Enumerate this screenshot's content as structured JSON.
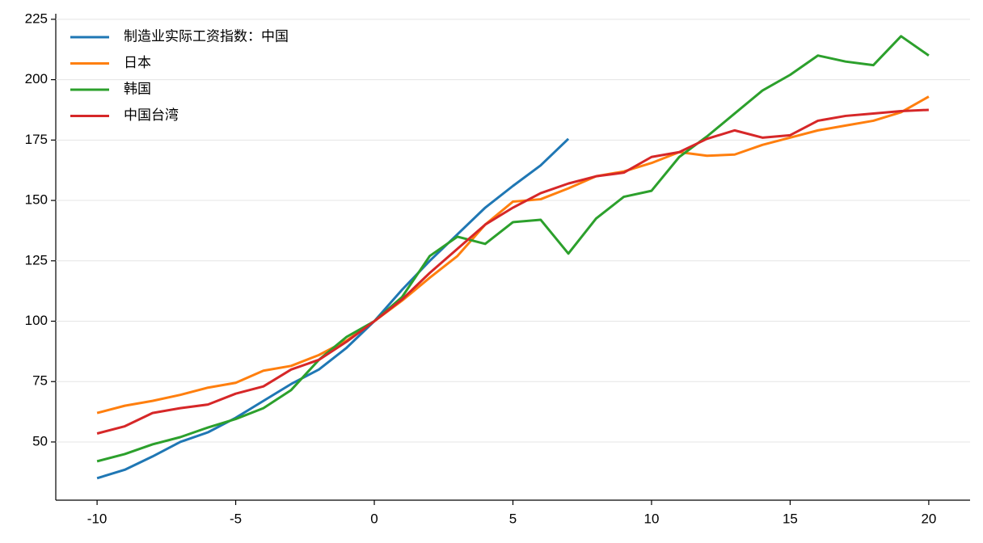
{
  "chart_data": {
    "type": "line",
    "x": [
      -10,
      -9,
      -8,
      -7,
      -6,
      -5,
      -4,
      -3,
      -2,
      -1,
      0,
      1,
      2,
      3,
      4,
      5,
      6,
      7,
      8,
      9,
      10,
      11,
      12,
      13,
      14,
      15,
      16,
      17,
      18,
      19,
      20
    ],
    "series": [
      {
        "name": "制造业实际工资指数：中国",
        "color": "#1f77b4",
        "values": [
          35,
          38.5,
          44,
          50,
          54,
          60,
          67,
          74,
          80,
          89,
          100,
          113,
          125,
          136,
          147,
          156,
          164.5,
          175.5,
          null,
          null,
          null,
          null,
          null,
          null,
          null,
          null,
          null,
          null,
          null,
          null,
          null
        ]
      },
      {
        "name": "日本",
        "color": "#ff7f0e",
        "values": [
          62,
          65,
          67,
          69.5,
          72.5,
          74.5,
          79.5,
          81.5,
          86,
          92,
          100,
          108.5,
          118,
          127,
          140,
          149.5,
          150.5,
          155,
          160,
          162,
          165.5,
          170,
          168.5,
          169,
          173,
          176,
          179,
          181,
          183,
          186.5,
          193
        ]
      },
      {
        "name": "韩国",
        "color": "#2ca02c",
        "values": [
          42,
          45,
          49,
          52,
          56,
          59.5,
          64,
          71.5,
          84,
          93.5,
          100,
          110,
          127,
          135,
          132,
          141,
          142,
          128,
          142.5,
          151.5,
          154,
          168,
          176.5,
          186,
          195.5,
          202,
          210,
          207.5,
          206,
          218,
          210
        ]
      },
      {
        "name": "中国台湾",
        "color": "#d62728",
        "values": [
          53.5,
          56.5,
          62,
          64,
          65.5,
          70,
          73,
          80,
          84,
          91.5,
          100,
          109,
          120,
          130,
          140,
          147,
          153,
          157,
          160,
          161.5,
          168,
          170,
          175.5,
          179,
          176,
          177,
          183,
          185,
          186,
          187,
          187.5
        ]
      }
    ],
    "xlim": [
      -11.49,
      21.49
    ],
    "ylim": [
      25.9,
      227.3
    ],
    "xticks": [
      -10,
      -5,
      0,
      5,
      10,
      15,
      20
    ],
    "yticks": [
      50,
      75,
      100,
      125,
      150,
      175,
      200,
      225
    ],
    "grid": true,
    "legend": "upper-left"
  }
}
